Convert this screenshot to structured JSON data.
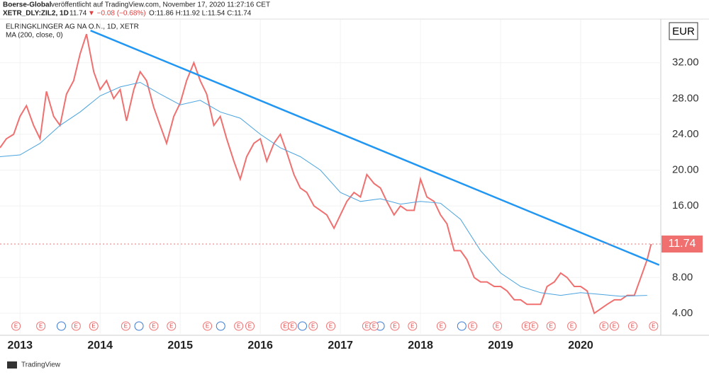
{
  "header": {
    "publisher": "Boerse-Global",
    "published": "veröffentlicht auf TradingView.com, November 17, 2020 11:27:16 CET",
    "symbol": "XETR_DLY:ZIL2, 1D",
    "last": "11.74",
    "change": "▼ −0.08 (−0.68%)",
    "ohlc": "O:11.86 H:11.92 L:11.54 C:11.74"
  },
  "footer": "TradingView",
  "chart_data": {
    "type": "line",
    "currency": "EUR",
    "x": [
      2012.75,
      2012.83,
      2012.92,
      2013.0,
      2013.08,
      2013.17,
      2013.25,
      2013.33,
      2013.42,
      2013.5,
      2013.58,
      2013.67,
      2013.75,
      2013.83,
      2013.92,
      2014.0,
      2014.08,
      2014.17,
      2014.25,
      2014.33,
      2014.42,
      2014.5,
      2014.58,
      2014.67,
      2014.75,
      2014.83,
      2014.92,
      2015.0,
      2015.08,
      2015.17,
      2015.25,
      2015.33,
      2015.42,
      2015.5,
      2015.58,
      2015.67,
      2015.75,
      2015.83,
      2015.92,
      2016.0,
      2016.08,
      2016.17,
      2016.25,
      2016.33,
      2016.42,
      2016.5,
      2016.58,
      2016.67,
      2016.75,
      2016.83,
      2016.92,
      2017.0,
      2017.08,
      2017.17,
      2017.25,
      2017.33,
      2017.42,
      2017.5,
      2017.58,
      2017.67,
      2017.75,
      2017.83,
      2017.92,
      2018.0,
      2018.08,
      2018.17,
      2018.25,
      2018.33,
      2018.42,
      2018.5,
      2018.58,
      2018.67,
      2018.75,
      2018.83,
      2018.92,
      2019.0,
      2019.08,
      2019.17,
      2019.25,
      2019.33,
      2019.42,
      2019.5,
      2019.58,
      2019.67,
      2019.75,
      2019.83,
      2019.92,
      2020.0,
      2020.08,
      2020.17,
      2020.25,
      2020.33,
      2020.42,
      2020.5,
      2020.58,
      2020.67,
      2020.75,
      2020.83,
      2020.88
    ],
    "series": [
      {
        "name": "ELRINGKLINGER AG NA O.N., 1D, XETR",
        "color": "#f07070",
        "values": [
          22.5,
          23.5,
          24,
          26,
          27.2,
          25,
          23.5,
          28.8,
          26,
          25,
          28.5,
          30,
          33,
          35.2,
          31,
          29,
          30,
          28,
          29,
          25.5,
          29,
          31,
          30,
          27,
          25,
          23,
          26,
          27.5,
          30,
          32,
          30,
          28.5,
          25,
          26,
          23.5,
          21,
          19,
          21.5,
          23,
          23.5,
          21,
          23,
          24,
          22,
          19.5,
          18,
          17.5,
          16,
          15.5,
          15,
          13.5,
          15,
          16.5,
          17.5,
          17,
          19.5,
          18.5,
          18,
          16.5,
          15,
          16,
          15.5,
          15.5,
          19,
          17,
          16.5,
          15,
          14,
          11,
          11,
          10,
          8,
          7.5,
          7.5,
          7,
          7,
          6.5,
          5.5,
          5.5,
          5,
          5,
          5,
          7,
          7.5,
          8.5,
          8,
          7,
          7,
          6.5,
          4,
          4.5,
          5,
          5.5,
          5.5,
          6,
          6,
          8,
          10,
          11.74
        ]
      },
      {
        "name": "MA (200, close, 0)",
        "color": "#4aa3df",
        "x": [
          2012.75,
          2013.0,
          2013.25,
          2013.5,
          2013.75,
          2014.0,
          2014.25,
          2014.5,
          2014.75,
          2015.0,
          2015.25,
          2015.5,
          2015.75,
          2016.0,
          2016.25,
          2016.5,
          2016.75,
          2017.0,
          2017.25,
          2017.5,
          2017.75,
          2018.0,
          2018.25,
          2018.5,
          2018.75,
          2019.0,
          2019.25,
          2019.5,
          2019.75,
          2020.0,
          2020.25,
          2020.5,
          2020.83
        ],
        "values": [
          21.5,
          21.7,
          23,
          25,
          26.5,
          28.3,
          29.3,
          29.8,
          28.5,
          27.3,
          27.8,
          26.5,
          25.8,
          24,
          22.5,
          21.5,
          20,
          17.5,
          16.5,
          16.8,
          16.2,
          16.5,
          16.3,
          14.5,
          11,
          8.5,
          7,
          6.3,
          6,
          6.3,
          6.1,
          5.9,
          6.0
        ]
      }
    ],
    "trendline": {
      "x": [
        2013.88,
        2020.98
      ],
      "values": [
        35.6,
        9.4
      ],
      "color": "#2196f3"
    },
    "last_value": 11.74,
    "event_label": "E",
    "events": [
      2012.95,
      2013.26,
      2013.7,
      2013.92,
      2014.32,
      2014.67,
      2014.89,
      2015.34,
      2015.73,
      2015.87,
      2016.31,
      2016.4,
      2016.66,
      2016.88,
      2017.33,
      2017.42,
      2017.68,
      2017.9,
      2018.26,
      2018.65,
      2018.96,
      2019.32,
      2019.41,
      2019.63,
      2019.89,
      2020.29,
      2020.42,
      2020.65,
      2020.91
    ],
    "dividends": [
      2013.48,
      2014.45,
      2015.47,
      2016.49,
      2017.46,
      2018.48
    ],
    "xlim": [
      2012.75,
      2021.0
    ],
    "ylim": [
      1.7,
      36.8
    ],
    "xticks": [
      2013,
      2014,
      2015,
      2016,
      2017,
      2018,
      2019,
      2020
    ],
    "yticks": [
      {
        "value": 4,
        "label": "4.00"
      },
      {
        "value": 8,
        "label": "8.00"
      },
      {
        "value": 16,
        "label": "16.00"
      },
      {
        "value": 20,
        "label": "20.00"
      },
      {
        "value": 24,
        "label": "24.00"
      },
      {
        "value": 28,
        "label": "28.00"
      },
      {
        "value": 32,
        "label": "32.00"
      }
    ]
  }
}
